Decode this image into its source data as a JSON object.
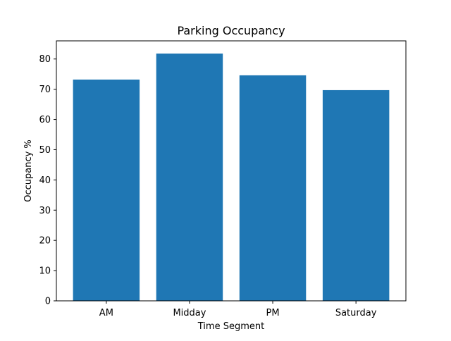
{
  "chart_data": {
    "type": "bar",
    "title": "Parking Occupancy",
    "xlabel": "Time Segment",
    "ylabel": "Occupancy %",
    "categories": [
      "AM",
      "Midday",
      "PM",
      "Saturday"
    ],
    "values": [
      73.2,
      81.8,
      74.6,
      69.7
    ],
    "ylim": [
      0,
      86
    ],
    "yticks": [
      0,
      10,
      20,
      30,
      40,
      50,
      60,
      70,
      80
    ],
    "grid": false,
    "bar_color": "#1f77b4"
  }
}
